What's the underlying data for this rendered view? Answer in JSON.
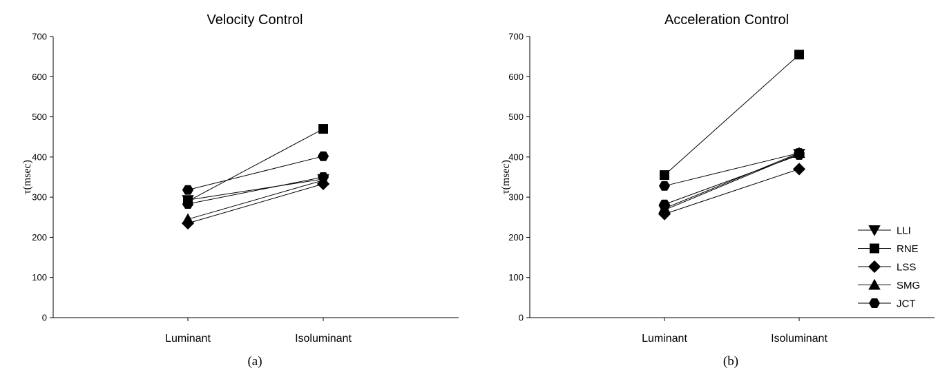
{
  "chart_data": [
    {
      "type": "line",
      "title": "Velocity Control",
      "panel_label": "(a)",
      "ylabel": "τ(msec)",
      "xlabel": "",
      "ylim": [
        0,
        700
      ],
      "yticks": [
        0,
        100,
        200,
        300,
        400,
        500,
        600,
        700
      ],
      "categories": [
        "Luminant",
        "Isoluminant"
      ],
      "grid": false,
      "series": [
        {
          "name": "LLI",
          "marker": "triangle-down",
          "values": [
            293,
            345
          ]
        },
        {
          "name": "RNE",
          "marker": "square",
          "values": [
            290,
            470
          ]
        },
        {
          "name": "LSS",
          "marker": "diamond",
          "values": [
            235,
            333
          ]
        },
        {
          "name": "SMG",
          "marker": "triangle-up",
          "values": [
            245,
            342
          ]
        },
        {
          "name": "JCT",
          "marker": "hexagon",
          "values": [
            318,
            402
          ]
        },
        {
          "name": "JCT",
          "marker": "hexagon",
          "values": [
            283,
            350
          ]
        }
      ]
    },
    {
      "type": "line",
      "title": "Acceleration Control",
      "panel_label": "(b)",
      "ylabel": "τ(msec)",
      "xlabel": "",
      "ylim": [
        0,
        700
      ],
      "yticks": [
        0,
        100,
        200,
        300,
        400,
        500,
        600,
        700
      ],
      "categories": [
        "Luminant",
        "Isoluminant"
      ],
      "grid": false,
      "legend_position": "right",
      "legend": [
        "LLI",
        "RNE",
        "LSS",
        "SMG",
        "JCT"
      ],
      "series": [
        {
          "name": "LLI",
          "marker": "triangle-down",
          "values": [
            268,
            408
          ]
        },
        {
          "name": "RNE",
          "marker": "square",
          "values": [
            355,
            655
          ]
        },
        {
          "name": "LSS",
          "marker": "diamond",
          "values": [
            258,
            370
          ]
        },
        {
          "name": "SMG",
          "marker": "triangle-up",
          "values": [
            272,
            410
          ]
        },
        {
          "name": "JCT",
          "marker": "hexagon",
          "values": [
            328,
            410
          ]
        },
        {
          "name": "JCT",
          "marker": "hexagon",
          "values": [
            282,
            405
          ]
        }
      ]
    }
  ],
  "legend_items": [
    {
      "label": "LLI",
      "marker": "triangle-down"
    },
    {
      "label": "RNE",
      "marker": "square"
    },
    {
      "label": "LSS",
      "marker": "diamond"
    },
    {
      "label": "SMG",
      "marker": "triangle-up"
    },
    {
      "label": "JCT",
      "marker": "hexagon"
    }
  ]
}
